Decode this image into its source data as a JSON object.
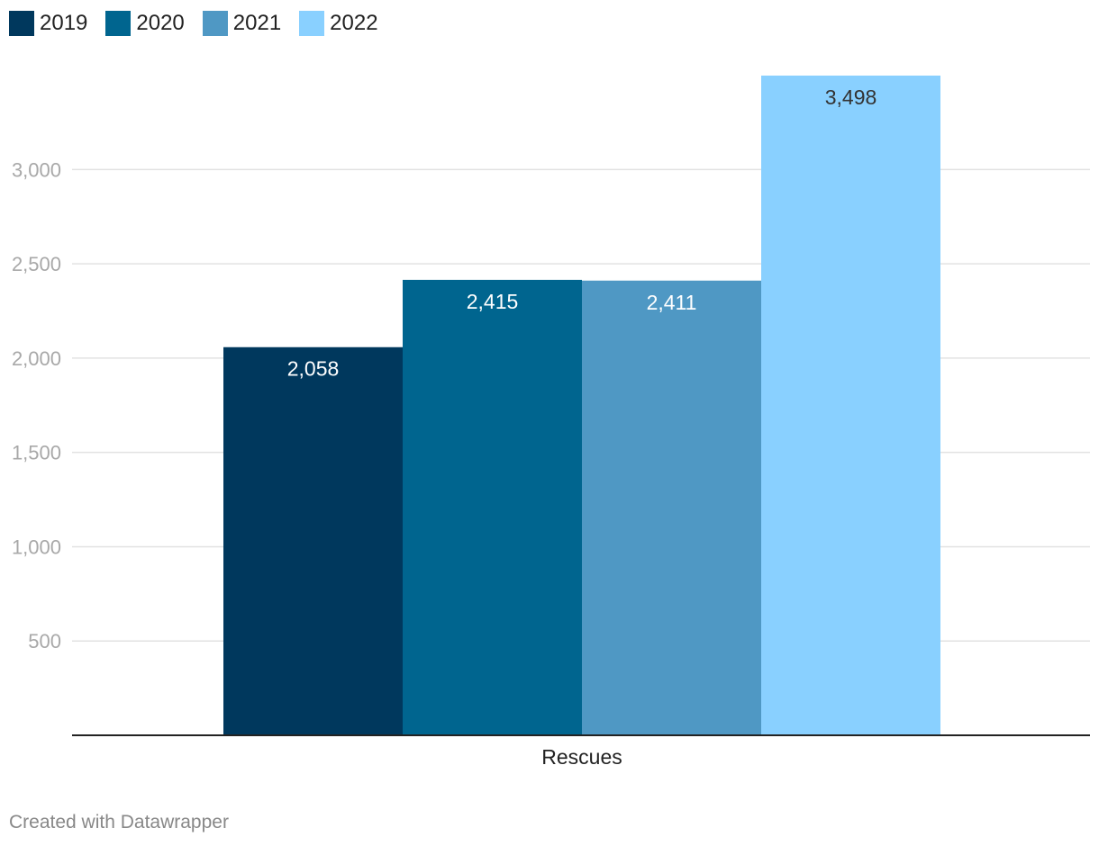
{
  "chart_data": {
    "type": "bar",
    "categories": [
      "Rescues"
    ],
    "series": [
      {
        "name": "2019",
        "values": [
          2058
        ],
        "label": "2,058",
        "color": "#00385d"
      },
      {
        "name": "2020",
        "values": [
          2415
        ],
        "label": "2,415",
        "color": "#00658f"
      },
      {
        "name": "2021",
        "values": [
          2411
        ],
        "label": "2,411",
        "color": "#4f98c4"
      },
      {
        "name": "2022",
        "values": [
          3498
        ],
        "label": "3,498",
        "color": "#89d0ff"
      }
    ],
    "ylim": [
      0,
      3498
    ],
    "yticks": [
      {
        "value": 500,
        "label": "500"
      },
      {
        "value": 1000,
        "label": "1,000"
      },
      {
        "value": 1500,
        "label": "1,500"
      },
      {
        "value": 2000,
        "label": "2,000"
      },
      {
        "value": 2500,
        "label": "2,500"
      },
      {
        "value": 3000,
        "label": "3,000"
      }
    ],
    "grid": true,
    "legend_position": "top-left"
  },
  "legend": {
    "items": [
      {
        "label": "2019",
        "color": "#00385d"
      },
      {
        "label": "2020",
        "color": "#00658f"
      },
      {
        "label": "2021",
        "color": "#4f98c4"
      },
      {
        "label": "2022",
        "color": "#89d0ff"
      }
    ]
  },
  "footer": {
    "credit": "Created with Datawrapper"
  }
}
